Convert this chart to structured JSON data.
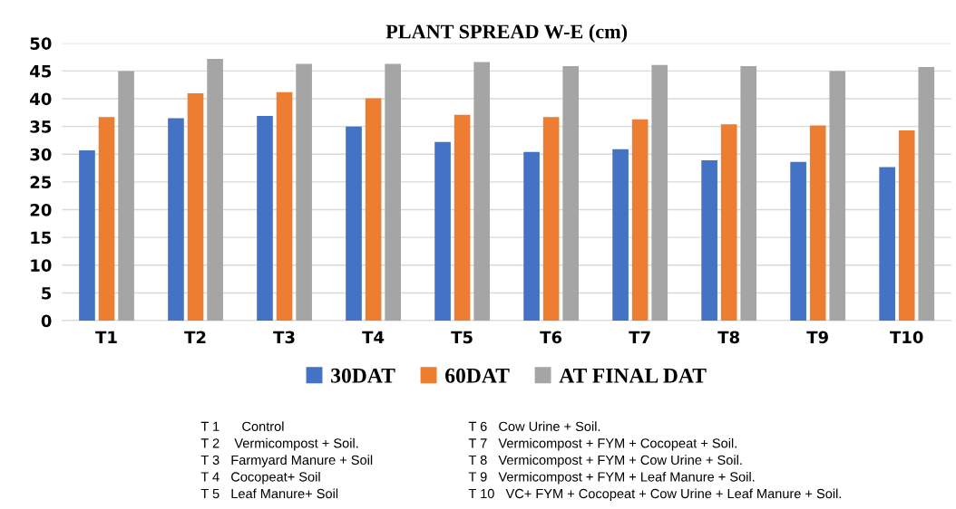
{
  "chart_data": {
    "type": "bar",
    "title": "PLANT SPREAD W-E (cm)",
    "categories": [
      "T1",
      "T2",
      "T3",
      "T4",
      "T5",
      "T6",
      "T7",
      "T8",
      "T9",
      "T10"
    ],
    "series": [
      {
        "name": "30DAT",
        "color": "#4472c4",
        "values": [
          30.7,
          36.5,
          36.9,
          35.0,
          32.2,
          30.4,
          30.9,
          28.9,
          28.6,
          27.7
        ]
      },
      {
        "name": "60DAT",
        "color": "#ed7d31",
        "values": [
          36.7,
          41.0,
          41.2,
          40.1,
          37.1,
          36.7,
          36.3,
          35.4,
          35.2,
          34.3
        ]
      },
      {
        "name": "AT FINAL DAT",
        "color": "#a5a5a5",
        "values": [
          45.0,
          47.2,
          46.3,
          46.3,
          46.6,
          45.9,
          46.1,
          45.9,
          45.0,
          45.7
        ]
      }
    ],
    "ylim": [
      0,
      50
    ],
    "yticks": [
      0,
      5,
      10,
      15,
      20,
      25,
      30,
      35,
      40,
      45,
      50
    ],
    "grid": "y",
    "legend": "bottom",
    "annotations": [
      "T 1      Control",
      "T 2    Vermicompost + Soil.",
      "T 3   Farmyard Manure + Soil",
      "T 4   Cocopeat+ Soil",
      "T 5   Leaf Manure+ Soil",
      "T 6   Cow Urine + Soil.",
      "T 7   Vermicompost + FYM + Cocopeat + Soil.",
      "T 8   Vermicompost + FYM + Cow Urine + Soil.",
      "T 9   Vermicompost + FYM + Leaf Manure + Soil.",
      "T 10   VC+ FYM + Cocopeat + Cow Urine + Leaf Manure + Soil."
    ]
  }
}
